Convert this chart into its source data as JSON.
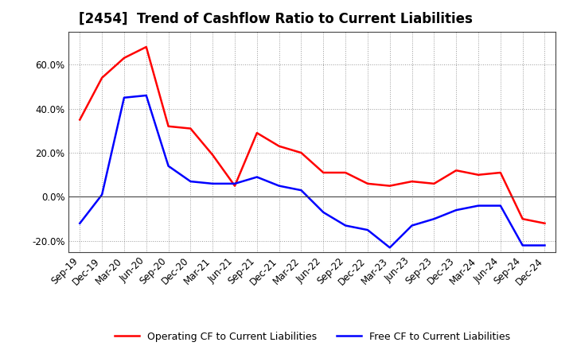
{
  "title": "[2454]  Trend of Cashflow Ratio to Current Liabilities",
  "labels": [
    "Sep-19",
    "Dec-19",
    "Mar-20",
    "Jun-20",
    "Sep-20",
    "Dec-20",
    "Mar-21",
    "Jun-21",
    "Sep-21",
    "Dec-21",
    "Mar-22",
    "Jun-22",
    "Sep-22",
    "Dec-22",
    "Mar-23",
    "Jun-23",
    "Sep-23",
    "Dec-23",
    "Mar-24",
    "Jun-24",
    "Sep-24",
    "Dec-24"
  ],
  "operating_cf": [
    0.35,
    0.54,
    0.63,
    0.68,
    0.32,
    0.31,
    0.19,
    0.05,
    0.29,
    0.23,
    0.2,
    0.11,
    0.11,
    0.06,
    0.05,
    0.07,
    0.06,
    0.12,
    0.1,
    0.11,
    -0.1,
    -0.12
  ],
  "free_cf": [
    -0.12,
    0.01,
    0.45,
    0.46,
    0.14,
    0.07,
    0.06,
    0.06,
    0.09,
    0.05,
    0.03,
    -0.07,
    -0.13,
    -0.15,
    -0.23,
    -0.13,
    -0.1,
    -0.06,
    -0.04,
    -0.04,
    -0.22,
    -0.22
  ],
  "operating_color": "#ff0000",
  "free_color": "#0000ff",
  "ylim": [
    -0.25,
    0.75
  ],
  "yticks": [
    -0.2,
    0.0,
    0.2,
    0.4,
    0.6
  ],
  "background_color": "#ffffff",
  "grid_color": "#999999",
  "title_fontsize": 12,
  "tick_fontsize": 8.5,
  "legend_labels": [
    "Operating CF to Current Liabilities",
    "Free CF to Current Liabilities"
  ]
}
